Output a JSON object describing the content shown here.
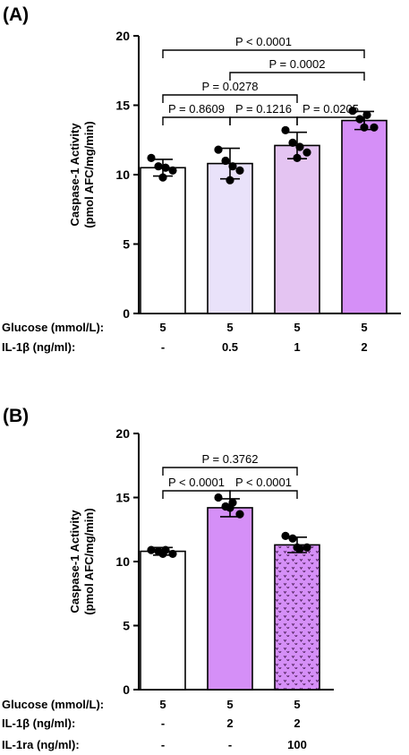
{
  "panels": [
    {
      "label": "(A)",
      "chart_data": {
        "type": "bar",
        "ylabel_line1": "Caspase-1 Activity",
        "ylabel_line2": "(pmol AFC/mg/min)",
        "ylim": [
          0,
          20
        ],
        "yticks": [
          "0",
          "5",
          "10",
          "15",
          "20"
        ],
        "grid": false,
        "series": [
          {
            "values": [
              10.5,
              10.8,
              12.1,
              13.9
            ],
            "sd": [
              0.6,
              1.1,
              0.95,
              0.65
            ],
            "colors": [
              "#ffffff",
              "#e9e2fa",
              "#e4c4f2",
              "#d58ff7"
            ],
            "pattern": [
              false,
              false,
              false,
              false
            ],
            "points": [
              [
                11.2,
                10.6,
                10.5,
                10.3,
                9.8
              ],
              [
                11.8,
                11.0,
                10.6,
                10.3,
                9.6
              ],
              [
                13.2,
                12.3,
                12.0,
                11.6,
                11.2
              ],
              [
                14.6,
                14.0,
                14.3,
                13.4,
                13.4
              ]
            ]
          }
        ],
        "conditions": [
          {
            "label": "Glucose (mmol/L):",
            "values": [
              "5",
              "5",
              "5",
              "5"
            ]
          },
          {
            "label": "IL-1β (ng/ml):",
            "values": [
              "-",
              "0.5",
              "1",
              "2"
            ]
          }
        ],
        "comparisons": [
          {
            "from": 0,
            "to": 1,
            "text": "P = 0.8609",
            "level": 1
          },
          {
            "from": 1,
            "to": 2,
            "text": "P = 0.1216",
            "level": 1
          },
          {
            "from": 2,
            "to": 3,
            "text": "P = 0.0205",
            "level": 1
          },
          {
            "from": 0,
            "to": 2,
            "text": "P = 0.0278",
            "level": 2
          },
          {
            "from": 1,
            "to": 3,
            "text": "P = 0.0002",
            "level": 3
          },
          {
            "from": 0,
            "to": 3,
            "text": "P < 0.0001",
            "level": 4
          }
        ]
      }
    },
    {
      "label": "(B)",
      "chart_data": {
        "type": "bar",
        "ylabel_line1": "Caspase-1 Activity",
        "ylabel_line2": "(pmol AFC/mg/min)",
        "ylim": [
          0,
          20
        ],
        "yticks": [
          "0",
          "5",
          "10",
          "15",
          "20"
        ],
        "grid": false,
        "series": [
          {
            "values": [
              10.8,
              14.2,
              11.3
            ],
            "sd": [
              0.3,
              0.7,
              0.6
            ],
            "colors": [
              "#ffffff",
              "#d58ff7",
              "#d58ff7"
            ],
            "pattern": [
              false,
              false,
              true
            ],
            "points": [
              [
                10.9,
                10.8,
                10.9,
                10.6,
                10.6
              ],
              [
                15.0,
                14.3,
                14.6,
                13.7,
                14.2
              ],
              [
                12.0,
                11.8,
                11.0,
                11.1,
                11.1
              ]
            ]
          }
        ],
        "conditions": [
          {
            "label": "Glucose (mmol/L):",
            "values": [
              "5",
              "5",
              "5"
            ]
          },
          {
            "label": "IL-1β (ng/ml):",
            "values": [
              "-",
              "2",
              "2"
            ]
          },
          {
            "label": "IL-1ra (ng/ml):",
            "values": [
              "-",
              "-",
              "100"
            ]
          }
        ],
        "comparisons": [
          {
            "from": 0,
            "to": 1,
            "text": "P < 0.0001",
            "level": 1
          },
          {
            "from": 1,
            "to": 2,
            "text": "P < 0.0001",
            "level": 1
          },
          {
            "from": 0,
            "to": 2,
            "text": "P = 0.3762",
            "level": 2
          }
        ]
      }
    }
  ]
}
